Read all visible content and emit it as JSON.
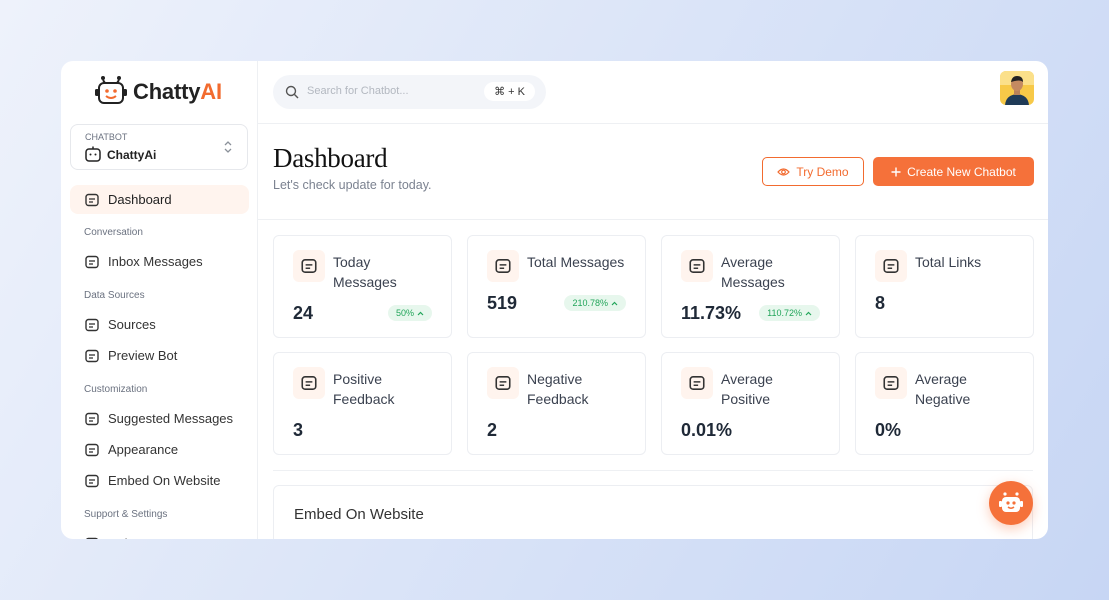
{
  "brand": {
    "name": "Chatty",
    "accent": "AI"
  },
  "chatbot_select": {
    "label": "CHATBOT",
    "value": "ChattyAi"
  },
  "nav": {
    "main": [
      {
        "label": "Dashboard",
        "active": true
      }
    ],
    "sections": [
      {
        "heading": "Conversation",
        "items": [
          {
            "label": "Inbox Messages"
          }
        ]
      },
      {
        "heading": "Data Sources",
        "items": [
          {
            "label": "Sources"
          },
          {
            "label": "Preview Bot"
          }
        ]
      },
      {
        "heading": "Customization",
        "items": [
          {
            "label": "Suggested Messages"
          },
          {
            "label": "Appearance"
          },
          {
            "label": "Embed On Website"
          }
        ]
      },
      {
        "heading": "Support & Settings",
        "items": [
          {
            "label": "Help Center"
          }
        ]
      }
    ]
  },
  "search": {
    "placeholder": "Search for Chatbot...",
    "shortcut": "⌘ + K"
  },
  "header": {
    "title": "Dashboard",
    "subtitle": "Let's check update for today."
  },
  "buttons": {
    "try_demo": "Try Demo",
    "create": "Create New Chatbot"
  },
  "stats": [
    {
      "title": "Today Messages",
      "value": "24",
      "change": "50%"
    },
    {
      "title": "Total Messages",
      "value": "519",
      "change": "210.78%"
    },
    {
      "title": "Average Messages",
      "value": "11.73%",
      "change": "110.72%"
    },
    {
      "title": "Total Links",
      "value": "8"
    },
    {
      "title": "Positive Feedback",
      "value": "3"
    },
    {
      "title": "Negative Feedback",
      "value": "2"
    },
    {
      "title": "Average Positive",
      "value": "0.01%"
    },
    {
      "title": "Average Negative",
      "value": "0%"
    }
  ],
  "embed": {
    "title": "Embed On Website"
  }
}
